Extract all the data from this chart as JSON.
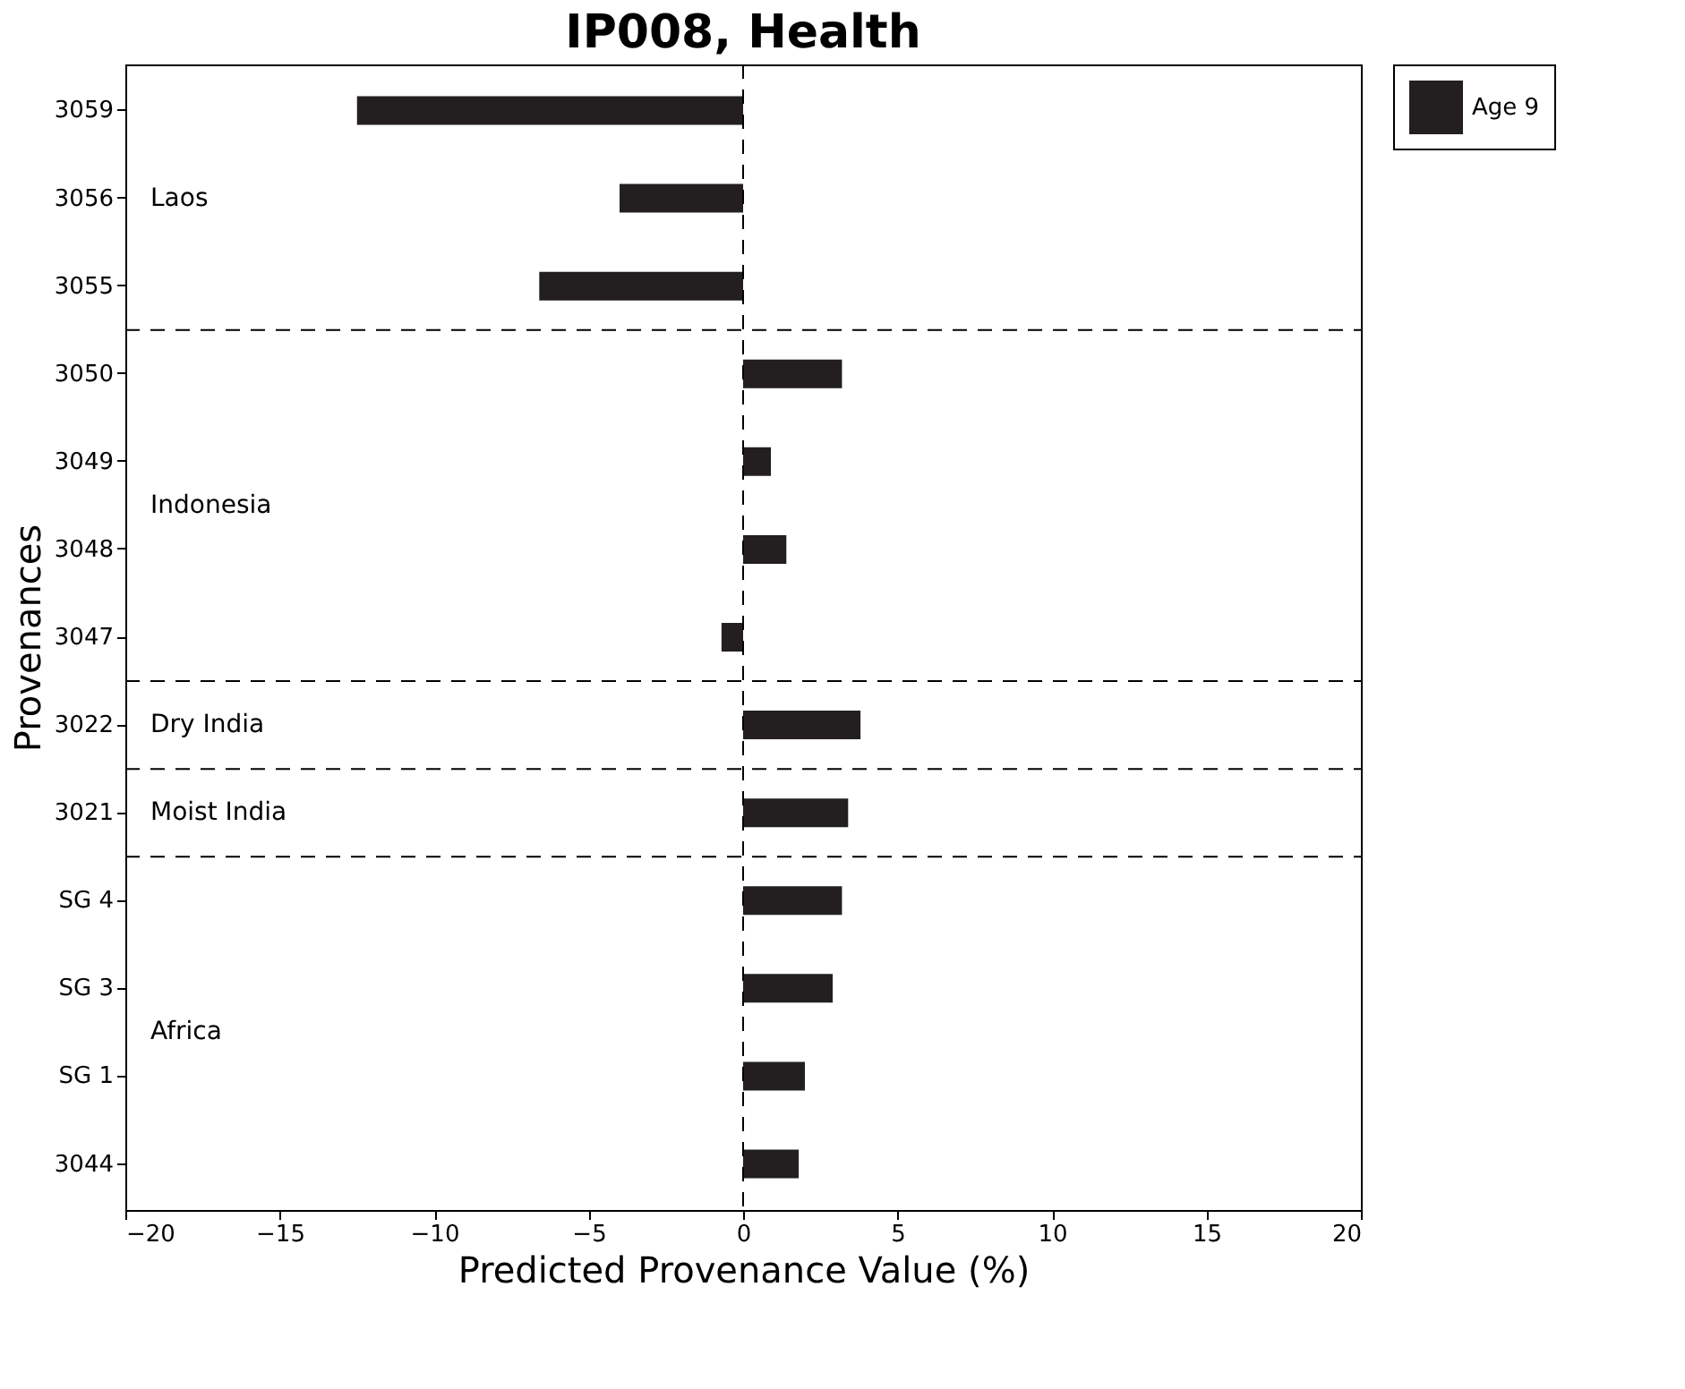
{
  "chart_data": {
    "type": "bar",
    "orientation": "horizontal",
    "title": "IP008, Health",
    "xlabel": "Predicted Provenance Value (%)",
    "ylabel": "Provenances",
    "categories": [
      "3059",
      "3056",
      "3055",
      "3050",
      "3049",
      "3048",
      "3047",
      "3022",
      "3021",
      "SG 4",
      "SG 3",
      "SG 1",
      "3044"
    ],
    "series": [
      {
        "name": "Age 9",
        "color": "#231f20",
        "values": [
          -12.5,
          -4.0,
          -6.6,
          3.2,
          0.9,
          1.4,
          -0.7,
          3.8,
          3.4,
          3.2,
          2.9,
          2.0,
          1.8
        ]
      }
    ],
    "xlim": [
      -20,
      20
    ],
    "xticks": [
      -20,
      -15,
      -10,
      -5,
      0,
      5,
      10,
      15,
      20
    ],
    "ref_lines": [
      {
        "axis": "x",
        "value": 0,
        "line_style": "dashed"
      },
      {
        "axis": "y",
        "value": "3055",
        "line_style": "dashed"
      },
      {
        "axis": "y",
        "value": "3047",
        "line_style": "dashed"
      },
      {
        "axis": "y",
        "value": "3022",
        "line_style": "dashed"
      },
      {
        "axis": "y",
        "value": "3021",
        "line_style": "dashed"
      }
    ],
    "annotations": [
      "Laos",
      "Indonesia",
      "Dry India",
      "Moist India",
      "Africa"
    ],
    "grid": false,
    "legend": "top right"
  }
}
